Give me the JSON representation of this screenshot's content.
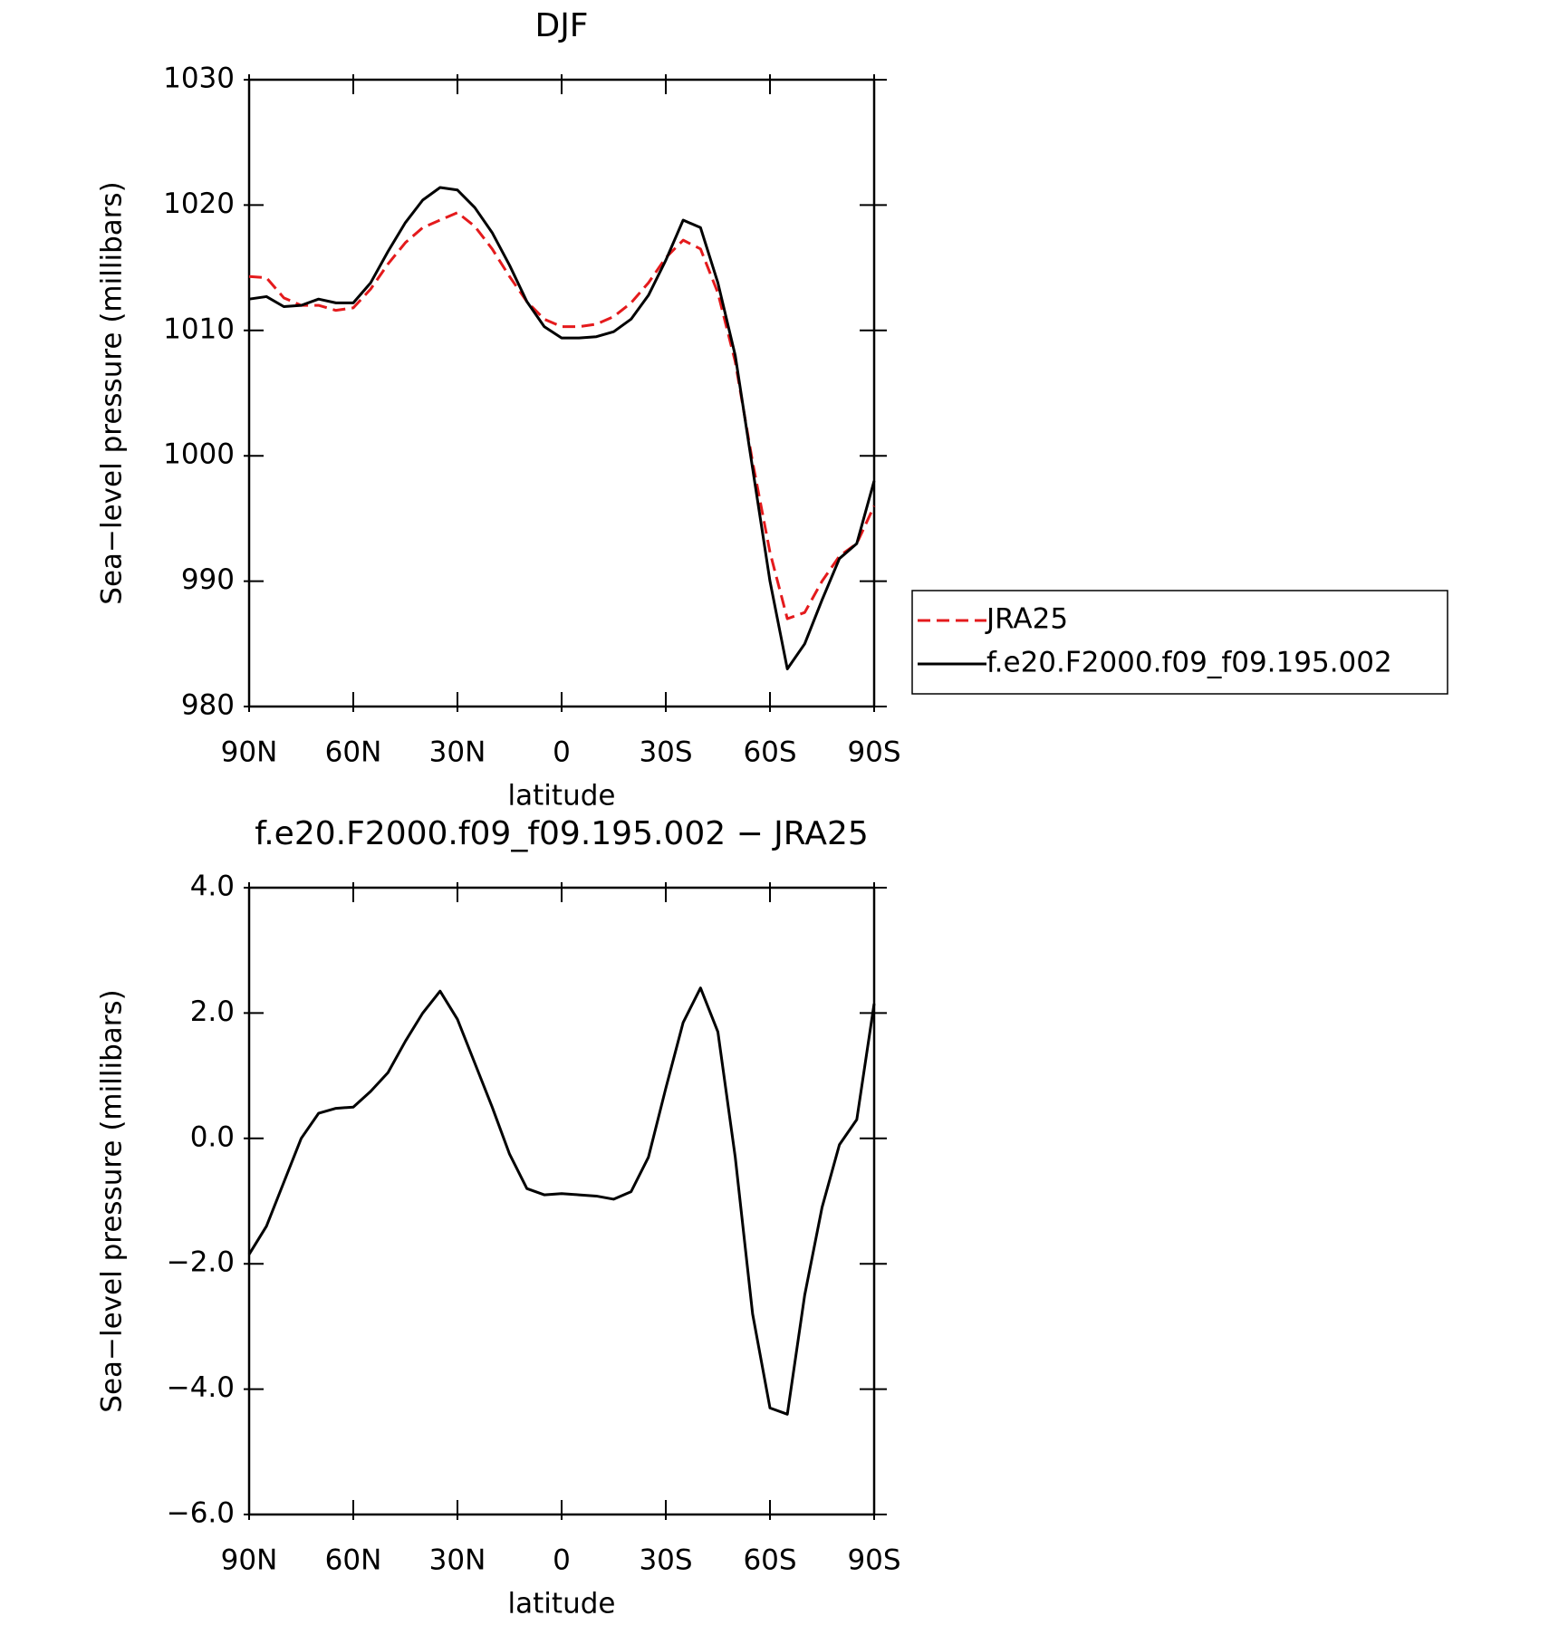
{
  "chart_data": [
    {
      "type": "line",
      "title": "DJF",
      "xlabel": "latitude",
      "ylabel": "Sea−level pressure (millibars)",
      "x": [
        90,
        85,
        80,
        75,
        70,
        65,
        60,
        55,
        50,
        45,
        40,
        35,
        30,
        25,
        20,
        15,
        10,
        5,
        0,
        -5,
        -10,
        -15,
        -20,
        -25,
        -30,
        -35,
        -40,
        -45,
        -50,
        -55,
        -60,
        -65,
        -70,
        -75,
        -80,
        -85,
        -90
      ],
      "series": [
        {
          "name": "JRA25",
          "color": "#e41a1c",
          "dash": "dashed",
          "values": [
            1014.3,
            1014.2,
            1012.6,
            1012.0,
            1012.0,
            1011.6,
            1011.8,
            1013.3,
            1015.3,
            1017.0,
            1018.2,
            1018.8,
            1019.4,
            1018.3,
            1016.5,
            1014.3,
            1012.3,
            1010.9,
            1010.3,
            1010.3,
            1010.5,
            1011.1,
            1012.2,
            1013.8,
            1015.8,
            1017.2,
            1016.5,
            1013.0,
            1007.5,
            999.5,
            992.3,
            987.0,
            987.5,
            990.0,
            992.0,
            993.0,
            996.0
          ]
        },
        {
          "name": "f.e20.F2000.f09_f09.195.002",
          "color": "#000000",
          "dash": "solid",
          "values": [
            1012.5,
            1012.7,
            1011.9,
            1012.0,
            1012.5,
            1012.2,
            1012.2,
            1013.8,
            1016.3,
            1018.6,
            1020.4,
            1021.4,
            1021.2,
            1019.8,
            1017.8,
            1015.2,
            1012.3,
            1010.3,
            1009.4,
            1009.4,
            1009.5,
            1009.9,
            1010.9,
            1012.8,
            1015.6,
            1018.8,
            1018.2,
            1013.8,
            1008.0,
            999.0,
            990.0,
            983.0,
            985.0,
            988.5,
            991.8,
            993.0,
            998.0
          ]
        }
      ],
      "xlim": [
        90,
        -90
      ],
      "ylim": [
        980,
        1030
      ],
      "xticks": [
        {
          "value": 90,
          "label": "90N"
        },
        {
          "value": 60,
          "label": "60N"
        },
        {
          "value": 30,
          "label": "30N"
        },
        0,
        {
          "value": -30,
          "label": "30S"
        },
        {
          "value": -60,
          "label": "60S"
        },
        {
          "value": -90,
          "label": "90S"
        }
      ],
      "yticks": [
        980,
        990,
        1000,
        1010,
        1020,
        1030
      ],
      "legend": "outside-right"
    },
    {
      "type": "line",
      "title": "f.e20.F2000.f09_f09.195.002 − JRA25",
      "xlabel": "latitude",
      "ylabel": "Sea−level pressure (millibars)",
      "x": [
        90,
        85,
        80,
        75,
        70,
        65,
        60,
        55,
        50,
        45,
        40,
        35,
        30,
        25,
        20,
        15,
        10,
        5,
        0,
        -5,
        -10,
        -15,
        -20,
        -25,
        -30,
        -35,
        -40,
        -45,
        -50,
        -55,
        -60,
        -65,
        -70,
        -75,
        -80,
        -85,
        -90
      ],
      "series": [
        {
          "color": "#000000",
          "dash": "solid",
          "values": [
            -1.85,
            -1.4,
            -0.7,
            0.0,
            0.4,
            0.48,
            0.5,
            0.75,
            1.05,
            1.55,
            2.0,
            2.35,
            1.9,
            1.2,
            0.5,
            -0.25,
            -0.8,
            -0.9,
            -0.88,
            -0.9,
            -0.92,
            -0.97,
            -0.85,
            -0.3,
            0.8,
            1.85,
            2.4,
            1.7,
            -0.3,
            -2.8,
            -4.3,
            -4.4,
            -2.5,
            -1.1,
            -0.1,
            0.3,
            2.15
          ]
        }
      ],
      "xlim": [
        90,
        -90
      ],
      "ylim": [
        -6,
        4
      ],
      "xticks": [
        {
          "value": 90,
          "label": "90N"
        },
        {
          "value": 60,
          "label": "60N"
        },
        {
          "value": 30,
          "label": "30N"
        },
        0,
        {
          "value": -30,
          "label": "30S"
        },
        {
          "value": -60,
          "label": "60S"
        },
        {
          "value": -90,
          "label": "90S"
        }
      ],
      "yticks": [
        {
          "value": 4,
          "label": "4.0"
        },
        {
          "value": 2,
          "label": "2.0"
        },
        {
          "value": 0,
          "label": "0.0"
        },
        {
          "value": -2,
          "label": "−2.0"
        },
        {
          "value": -4,
          "label": "−4.0"
        },
        {
          "value": -6,
          "label": "−6.0"
        }
      ]
    }
  ]
}
